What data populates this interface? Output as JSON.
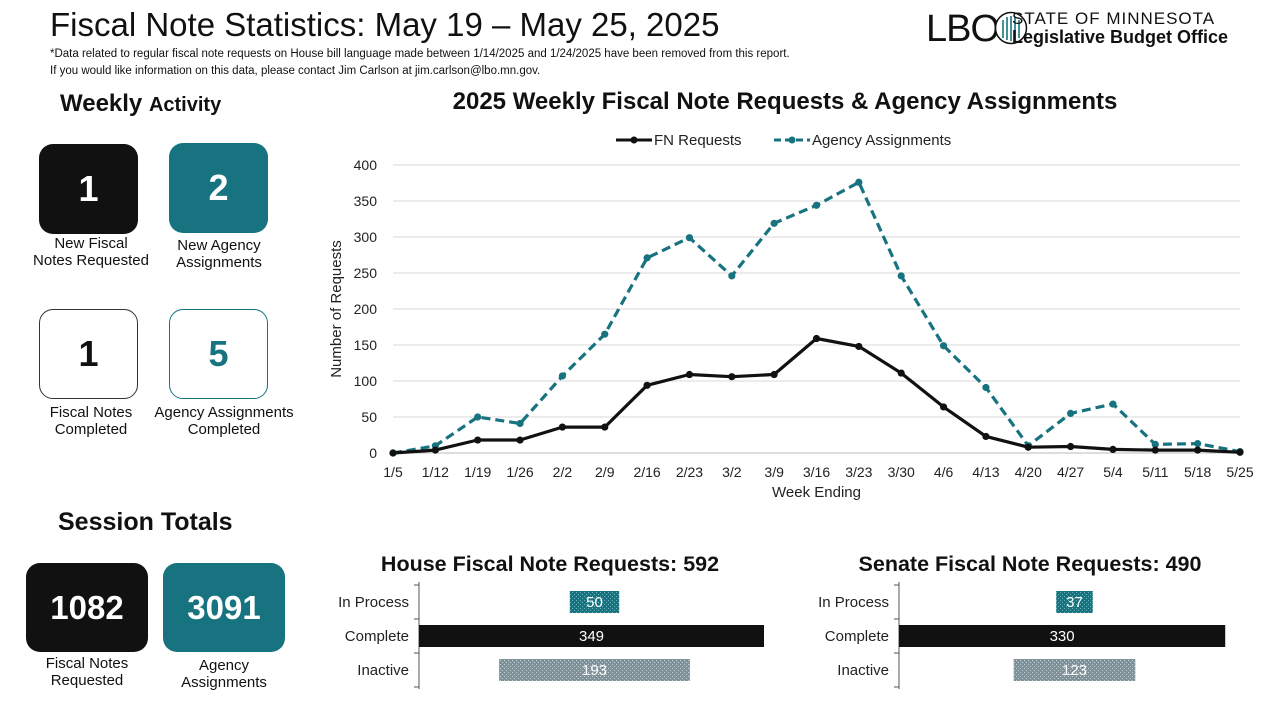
{
  "header": {
    "title": "Fiscal Note Statistics: May 19 – May 25, 2025",
    "note_line1": "*Data related to regular fiscal note requests on House bill language made between 1/14/2025 and 1/24/2025 have been removed from this report.",
    "note_line2": "If you would like information on this data, please contact Jim Carlson at jim.carlson@lbo.mn.gov."
  },
  "logo": {
    "mark": "LBO",
    "line1": "STATE OF MINNESOTA",
    "line2": "Legislative Budget Office"
  },
  "weekly": {
    "title_big": "Weekly",
    "title_small": "Activity",
    "kpis": [
      {
        "value": "1",
        "label_line1": "New Fiscal",
        "label_line2": "Notes Requested"
      },
      {
        "value": "2",
        "label_line1": "New Agency",
        "label_line2": "Assignments"
      },
      {
        "value": "1",
        "label_line1": "Fiscal Notes",
        "label_line2": "Completed"
      },
      {
        "value": "5",
        "label_line1": "Agency Assignments",
        "label_line2": "Completed"
      }
    ]
  },
  "session": {
    "title": "Session Totals",
    "kpis": [
      {
        "value": "1082",
        "label_line1": "Fiscal Notes",
        "label_line2": "Requested"
      },
      {
        "value": "3091",
        "label_line1": "Agency",
        "label_line2": "Assignments"
      }
    ]
  },
  "colors": {
    "teal": "#17737f",
    "black": "#111111",
    "gray_hatch": "#7f9299"
  },
  "chart_data": [
    {
      "type": "line",
      "title": "2025 Weekly Fiscal Note Requests & Agency Assignments",
      "xlabel": "Week Ending",
      "ylabel": "Number of Requests",
      "ylim": [
        0,
        400
      ],
      "yticks": [
        0,
        50,
        100,
        150,
        200,
        250,
        300,
        350,
        400
      ],
      "grid": true,
      "legend": "top-center",
      "x": [
        "1/5",
        "1/12",
        "1/19",
        "1/26",
        "2/2",
        "2/9",
        "2/16",
        "2/23",
        "3/2",
        "3/9",
        "3/16",
        "3/23",
        "3/30",
        "4/6",
        "4/13",
        "4/20",
        "4/27",
        "5/4",
        "5/11",
        "5/18",
        "5/25"
      ],
      "series": [
        {
          "name": "FN Requests",
          "color": "#111111",
          "style": "solid",
          "values": [
            0,
            4,
            18,
            18,
            36,
            36,
            94,
            109,
            106,
            109,
            159,
            148,
            111,
            64,
            23,
            8,
            9,
            5,
            4,
            4,
            1
          ]
        },
        {
          "name": "Agency Assignments",
          "color": "#17737f",
          "style": "dashed",
          "values": [
            0,
            10,
            50,
            41,
            107,
            165,
            271,
            299,
            246,
            319,
            344,
            376,
            246,
            149,
            91,
            10,
            55,
            68,
            12,
            13,
            2
          ]
        }
      ]
    },
    {
      "type": "bar",
      "orientation": "horizontal",
      "title": "House Fiscal Note Requests: 592",
      "categories": [
        "In Process",
        "Complete",
        "Inactive"
      ],
      "values": [
        50,
        349,
        193
      ],
      "styles": [
        "teal-hatch",
        "black",
        "gray-hatch"
      ]
    },
    {
      "type": "bar",
      "orientation": "horizontal",
      "title": "Senate Fiscal Note Requests: 490",
      "categories": [
        "In Process",
        "Complete",
        "Inactive"
      ],
      "values": [
        37,
        330,
        123
      ],
      "styles": [
        "teal-hatch",
        "black",
        "gray-hatch"
      ]
    }
  ]
}
